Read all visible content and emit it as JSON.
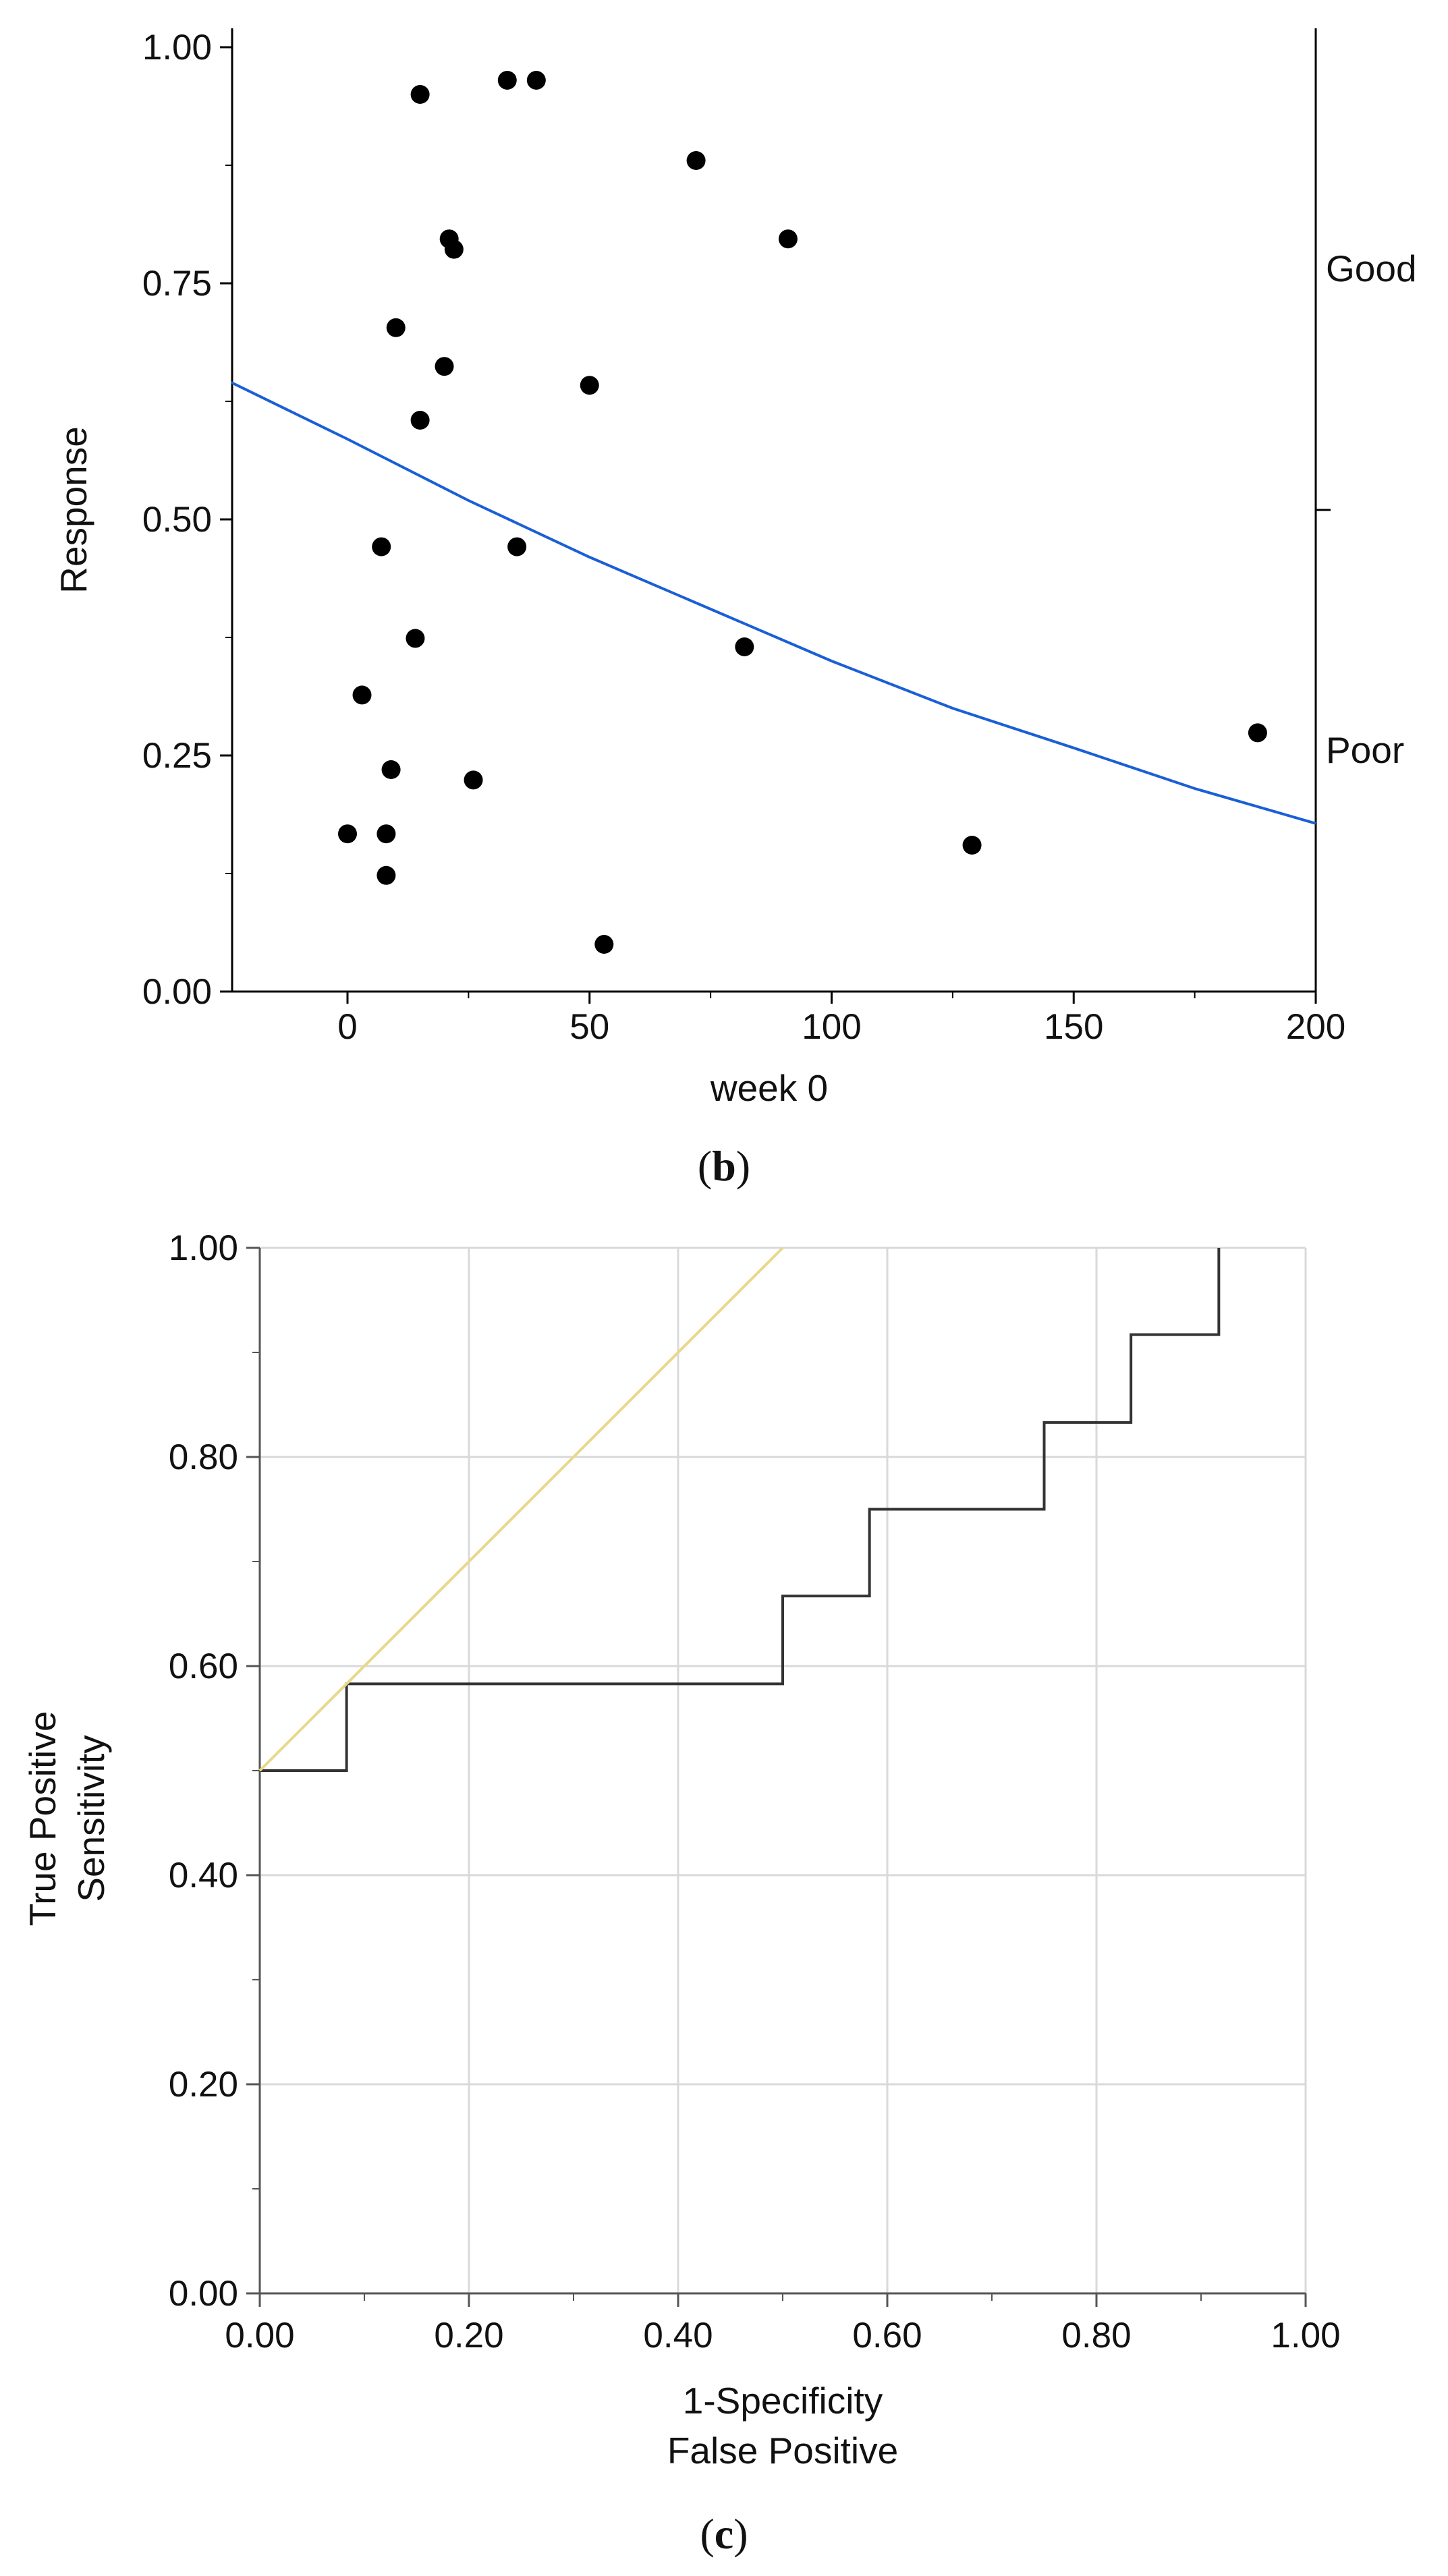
{
  "panels": {
    "b": {
      "label_prefix": "(",
      "label_letter": "b",
      "label_suffix": ")"
    },
    "c": {
      "label_prefix": "(",
      "label_letter": "c",
      "label_suffix": ")"
    }
  },
  "chart_data": [
    {
      "id": "b",
      "type": "scatter",
      "xlabel": "week 0",
      "ylabel": "Response",
      "xlim": [
        -24,
        200
      ],
      "ylim": [
        0,
        1.02
      ],
      "x_ticks": [
        0,
        50,
        100,
        150,
        200
      ],
      "x_tick_labels": [
        "0",
        "50",
        "100",
        "150",
        "200"
      ],
      "y_ticks": [
        0,
        0.25,
        0.5,
        0.75,
        1.0
      ],
      "y_tick_labels": [
        "0.00",
        "0.25",
        "0.50",
        "0.75",
        "1.00"
      ],
      "right_axis": {
        "categories": [
          "Good",
          "Poor"
        ],
        "divider": 0.51
      },
      "points": [
        {
          "x": 15,
          "y": 0.95
        },
        {
          "x": 33,
          "y": 0.965
        },
        {
          "x": 39,
          "y": 0.965
        },
        {
          "x": 72,
          "y": 0.88
        },
        {
          "x": 21,
          "y": 0.797
        },
        {
          "x": 22,
          "y": 0.786
        },
        {
          "x": 91,
          "y": 0.797
        },
        {
          "x": 10,
          "y": 0.703
        },
        {
          "x": 20,
          "y": 0.662
        },
        {
          "x": 50,
          "y": 0.642
        },
        {
          "x": 15,
          "y": 0.605
        },
        {
          "x": 7,
          "y": 0.471
        },
        {
          "x": 35,
          "y": 0.471
        },
        {
          "x": 14,
          "y": 0.374
        },
        {
          "x": 82,
          "y": 0.365
        },
        {
          "x": 3,
          "y": 0.314
        },
        {
          "x": 9,
          "y": 0.235
        },
        {
          "x": 26,
          "y": 0.224
        },
        {
          "x": 188,
          "y": 0.274
        },
        {
          "x": 0,
          "y": 0.167
        },
        {
          "x": 8,
          "y": 0.167
        },
        {
          "x": 8,
          "y": 0.123
        },
        {
          "x": 129,
          "y": 0.155
        },
        {
          "x": 53,
          "y": 0.05
        }
      ],
      "fit_curve": {
        "name": "logistic fit",
        "color": "#1a5fd6",
        "x": [
          -24,
          0,
          25,
          50,
          75,
          100,
          125,
          150,
          175,
          200
        ],
        "y": [
          0.645,
          0.585,
          0.52,
          0.46,
          0.405,
          0.35,
          0.3,
          0.258,
          0.215,
          0.178
        ]
      },
      "point_color": "#000000"
    },
    {
      "id": "c",
      "type": "line",
      "xlabel_lines": [
        "1-Specificity",
        "False Positive"
      ],
      "ylabel_lines": [
        "True Positive",
        "Sensitivity"
      ],
      "xlim": [
        0,
        1
      ],
      "ylim": [
        0,
        1
      ],
      "x_ticks": [
        0,
        0.2,
        0.4,
        0.6,
        0.8,
        1.0
      ],
      "x_tick_labels": [
        "0.00",
        "0.20",
        "0.40",
        "0.60",
        "0.80",
        "1.00"
      ],
      "y_ticks": [
        0,
        0.2,
        0.4,
        0.6,
        0.8,
        1.0
      ],
      "y_tick_labels": [
        "0.00",
        "0.20",
        "0.40",
        "0.60",
        "0.80",
        "1.00"
      ],
      "grid": true,
      "series": [
        {
          "name": "ROC curve",
          "color": "#333333",
          "x": [
            0,
            0.083,
            0.083,
            0.5,
            0.5,
            0.583,
            0.583,
            0.75,
            0.75,
            0.833,
            0.833,
            0.917,
            0.917
          ],
          "y": [
            0.5,
            0.5,
            0.583,
            0.583,
            0.667,
            0.667,
            0.75,
            0.75,
            0.833,
            0.833,
            0.917,
            0.917,
            1.0
          ]
        },
        {
          "name": "tangent line",
          "color": "#e8d98a",
          "x": [
            0,
            0.5
          ],
          "y": [
            0.5,
            1.0
          ]
        }
      ]
    }
  ]
}
